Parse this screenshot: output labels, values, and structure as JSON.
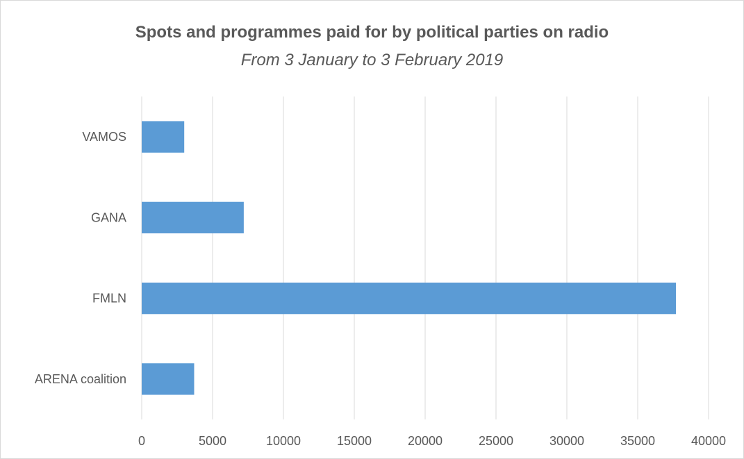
{
  "chart_data": {
    "type": "bar",
    "orientation": "horizontal",
    "title": "Spots and programmes paid for by political parties on radio",
    "subtitle": "From 3 January to 3 February 2019",
    "categories": [
      "VAMOS",
      "GANA",
      "FMLN",
      "ARENA coalition"
    ],
    "values": [
      3000,
      7200,
      37700,
      3700
    ],
    "xlim": [
      0,
      40000
    ],
    "x_ticks": [
      0,
      5000,
      10000,
      15000,
      20000,
      25000,
      30000,
      35000,
      40000
    ],
    "xlabel": "",
    "ylabel": "",
    "grid": "vertical",
    "legend": "none",
    "bar_color": "#5b9bd5"
  },
  "colors": {
    "bar": "#5b9bd5",
    "grid": "#d9d9d9",
    "text": "#595959"
  }
}
